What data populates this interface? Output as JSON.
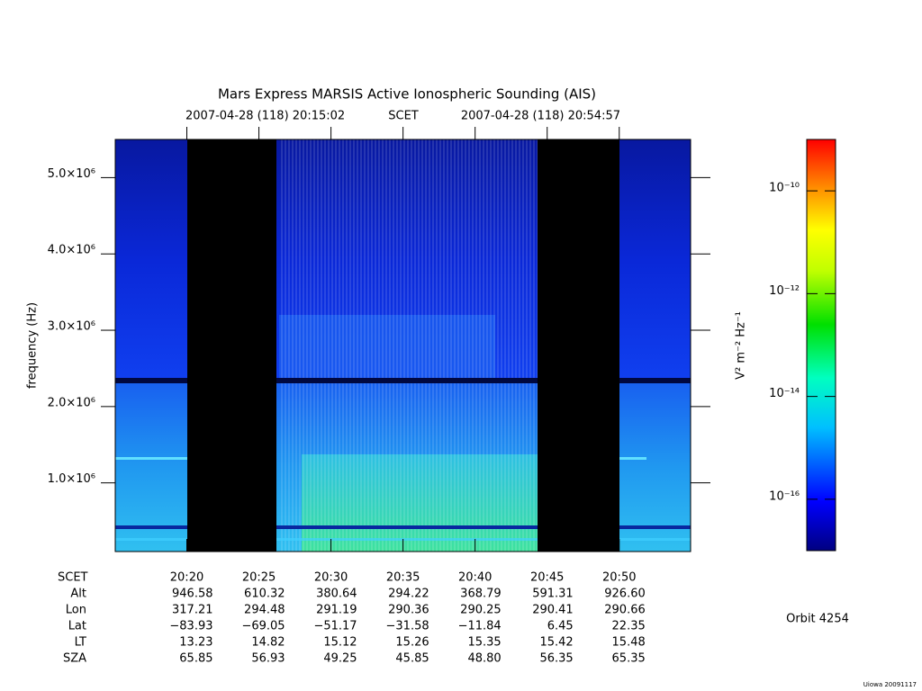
{
  "chart_data": {
    "type": "spectrogram",
    "title": "Mars Express MARSIS Active Ionospheric Sounding (AIS)",
    "time_system": "SCET",
    "xlim": [
      "2007-04-28 (118) 20:15:02",
      "2007-04-28 (118) 20:54:57"
    ],
    "ylabel": "frequency (Hz)",
    "ylim": [
      100000,
      5500000
    ],
    "yticks": [
      {
        "value": 1000000,
        "label": "1.0×10⁶"
      },
      {
        "value": 2000000,
        "label": "2.0×10⁶"
      },
      {
        "value": 3000000,
        "label": "3.0×10⁶"
      },
      {
        "value": 4000000,
        "label": "4.0×10⁶"
      },
      {
        "value": 5000000,
        "label": "5.0×10⁶"
      }
    ],
    "colorbar": {
      "label": "V² m⁻² Hz⁻¹",
      "scale": "log",
      "zlim": [
        1e-17,
        1e-09
      ],
      "zticks": [
        {
          "value": 1e-16,
          "label": "10⁻¹⁶"
        },
        {
          "value": 1e-14,
          "label": "10⁻¹⁴"
        },
        {
          "value": 1e-12,
          "label": "10⁻¹²"
        },
        {
          "value": 1e-10,
          "label": "10⁻¹⁰"
        }
      ]
    },
    "ephemeris": [
      {
        "name": "SCET",
        "values": [
          "20:20",
          "20:25",
          "20:30",
          "20:35",
          "20:40",
          "20:45",
          "20:50"
        ]
      },
      {
        "name": "Alt",
        "values": [
          "946.58",
          "610.32",
          "380.64",
          "294.22",
          "368.79",
          "591.31",
          "926.60"
        ]
      },
      {
        "name": "Lon",
        "values": [
          "317.21",
          "294.48",
          "291.19",
          "290.36",
          "290.25",
          "290.41",
          "290.66"
        ]
      },
      {
        "name": "Lat",
        "values": [
          "−83.93",
          "−69.05",
          "−51.17",
          "−31.58",
          "−11.84",
          "6.45",
          "22.35"
        ]
      },
      {
        "name": "LT",
        "values": [
          "13.23",
          "14.82",
          "15.12",
          "15.26",
          "15.35",
          "15.42",
          "15.48"
        ]
      },
      {
        "name": "SZA",
        "values": [
          "65.85",
          "56.93",
          "49.25",
          "45.85",
          "48.80",
          "56.35",
          "65.35"
        ]
      }
    ],
    "orbit": "Orbit 4254",
    "credit": "Uiowa 20091117"
  }
}
